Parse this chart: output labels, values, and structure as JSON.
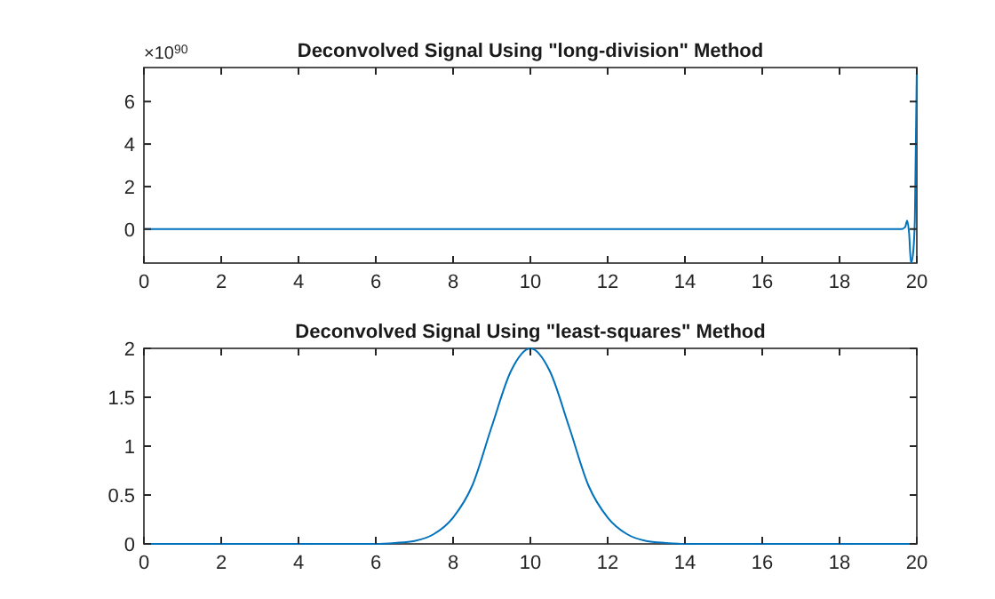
{
  "chart_data": [
    {
      "type": "line",
      "title": "Deconvolved Signal Using \"long-division\" Method",
      "annotations": [
        "×10$^{90}$"
      ],
      "xlim": [
        0,
        20
      ],
      "xticks": [
        0,
        2,
        4,
        6,
        8,
        10,
        12,
        14,
        16,
        18,
        20
      ],
      "ylim": [
        -1.6,
        7.6
      ],
      "yticks": [
        0,
        2,
        4,
        6
      ],
      "grid": false,
      "series": [
        {
          "color": "#0072bd",
          "x": [
            0,
            19.6,
            19.7,
            19.75,
            19.8,
            19.85,
            19.9,
            19.95,
            20
          ],
          "values": [
            0,
            0,
            0.1,
            0.4,
            -0.2,
            -1.6,
            -1.2,
            0.5,
            7.6
          ]
        }
      ]
    },
    {
      "type": "line",
      "title": "Deconvolved Signal Using \"least-squares\" Method",
      "xlim": [
        0,
        20
      ],
      "xticks": [
        0,
        2,
        4,
        6,
        8,
        10,
        12,
        14,
        16,
        18,
        20
      ],
      "ylim": [
        0,
        2
      ],
      "yticks": [
        0,
        0.5,
        1,
        1.5,
        2
      ],
      "grid": false,
      "series": [
        {
          "color": "#0072bd",
          "x": [
            0,
            6,
            6.5,
            7,
            7.5,
            8,
            8.5,
            9,
            9.5,
            10,
            10.5,
            11,
            11.5,
            12,
            12.5,
            13,
            13.5,
            14,
            20
          ],
          "values": [
            0,
            0,
            0.01,
            0.03,
            0.1,
            0.27,
            0.6,
            1.2,
            1.77,
            2,
            1.77,
            1.2,
            0.6,
            0.27,
            0.1,
            0.03,
            0.01,
            0,
            0
          ]
        }
      ]
    }
  ]
}
